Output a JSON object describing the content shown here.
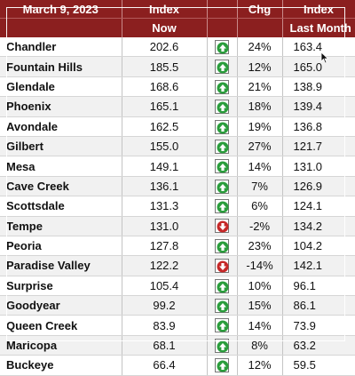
{
  "header": {
    "date": "March 9, 2023",
    "index_label": "Index",
    "now_label": "Now",
    "chg_label": "Chg",
    "index_label_2": "Index",
    "last_label": "Last Month"
  },
  "colors": {
    "header_bg": "#8b1f1f",
    "up_green": "#2a9d3c",
    "down_red": "#c62828"
  },
  "rows": [
    {
      "city": "Chandler",
      "now": "202.6",
      "trend": "up",
      "chg": "24%",
      "last": "163.4"
    },
    {
      "city": "Fountain Hills",
      "now": "185.5",
      "trend": "up",
      "chg": "12%",
      "last": "165.0"
    },
    {
      "city": "Glendale",
      "now": "168.6",
      "trend": "up",
      "chg": "21%",
      "last": "138.9"
    },
    {
      "city": "Phoenix",
      "now": "165.1",
      "trend": "up",
      "chg": "18%",
      "last": "139.4"
    },
    {
      "city": "Avondale",
      "now": "162.5",
      "trend": "up",
      "chg": "19%",
      "last": "136.8"
    },
    {
      "city": "Gilbert",
      "now": "155.0",
      "trend": "up",
      "chg": "27%",
      "last": "121.7"
    },
    {
      "city": "Mesa",
      "now": "149.1",
      "trend": "up",
      "chg": "14%",
      "last": "131.0"
    },
    {
      "city": "Cave Creek",
      "now": "136.1",
      "trend": "up",
      "chg": "7%",
      "last": "126.9"
    },
    {
      "city": "Scottsdale",
      "now": "131.3",
      "trend": "up",
      "chg": "6%",
      "last": "124.1"
    },
    {
      "city": "Tempe",
      "now": "131.0",
      "trend": "down",
      "chg": "-2%",
      "last": "134.2"
    },
    {
      "city": "Peoria",
      "now": "127.8",
      "trend": "up",
      "chg": "23%",
      "last": "104.2"
    },
    {
      "city": "Paradise Valley",
      "now": "122.2",
      "trend": "down",
      "chg": "-14%",
      "last": "142.1"
    },
    {
      "city": "Surprise",
      "now": "105.4",
      "trend": "up",
      "chg": "10%",
      "last": "96.1"
    },
    {
      "city": "Goodyear",
      "now": "99.2",
      "trend": "up",
      "chg": "15%",
      "last": "86.1"
    },
    {
      "city": "Queen Creek",
      "now": "83.9",
      "trend": "up",
      "chg": "14%",
      "last": "73.9"
    },
    {
      "city": "Maricopa",
      "now": "68.1",
      "trend": "up",
      "chg": "8%",
      "last": "63.2"
    },
    {
      "city": "Buckeye",
      "now": "66.4",
      "trend": "up",
      "chg": "12%",
      "last": "59.5"
    }
  ]
}
